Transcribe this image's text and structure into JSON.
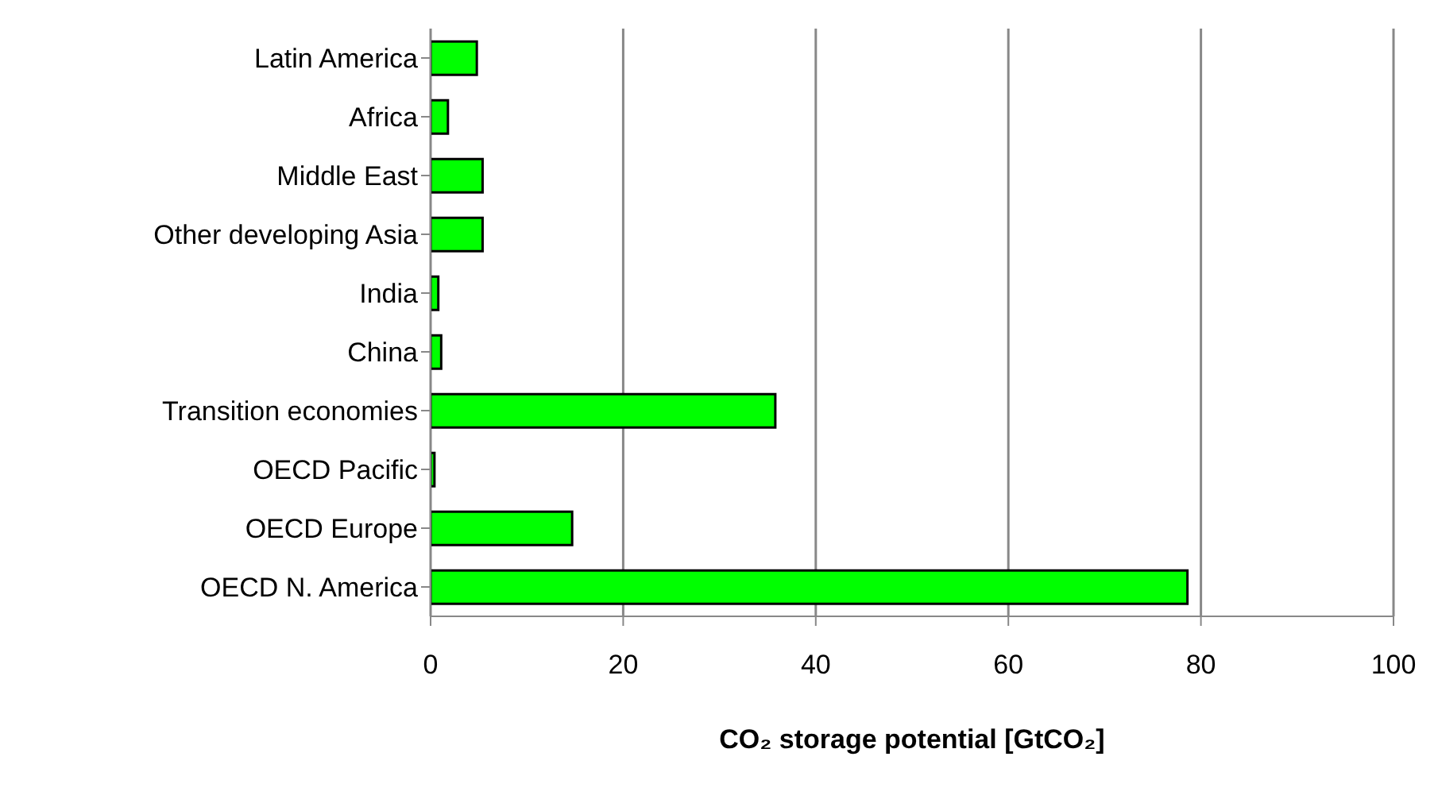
{
  "chart_data": {
    "type": "bar",
    "orientation": "horizontal",
    "xlabel": "CO₂ storage potential [GtCO₂]",
    "categories": [
      "Latin America",
      "Africa",
      "Middle East",
      "Other developing Asia",
      "India",
      "China",
      "Transition economies",
      "OECD Pacific",
      "OECD Europe",
      "OECD N. America"
    ],
    "values": [
      4.8,
      1.8,
      5.4,
      5.4,
      0.8,
      1.1,
      35.8,
      0.4,
      14.7,
      78.6
    ],
    "color": "#00ff00",
    "xlim": [
      0,
      100
    ],
    "xticks": [
      0,
      20,
      40,
      60,
      80,
      100
    ],
    "grid": "x"
  }
}
